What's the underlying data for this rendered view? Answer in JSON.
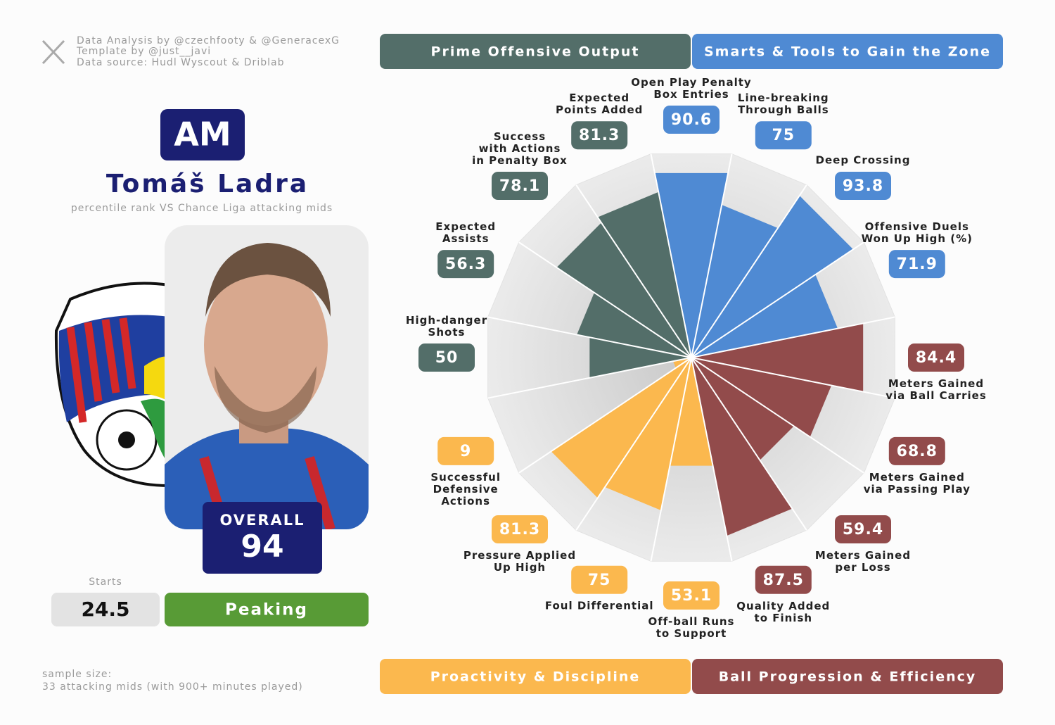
{
  "credits": [
    "Data Analysis by @czechfooty & @GeneracexG",
    "Template by @just__javi",
    "Data source: Hudl Wyscout & Driblab"
  ],
  "player": {
    "position": "AM",
    "name": "Tomáš Ladra",
    "subtitle": "percentile rank VS Chance Liga attacking mids",
    "overall_label": "OVERALL",
    "overall": 94,
    "starts_label": "Starts",
    "starts": 24.5,
    "form": "Peaking"
  },
  "sample": [
    "sample size:",
    "33 attacking mids (with 900+ minutes played)"
  ],
  "chart_data": {
    "type": "pizza",
    "rlim": [
      0,
      100
    ],
    "series": [
      {
        "name": "Prime Offensive Output",
        "color": "#536e69",
        "categories": [
          "High-danger\nShots",
          "Expected\nAssists",
          "Success\nwith Actions\nin Penalty Box",
          "Expected\nPoints Added"
        ],
        "values": [
          50,
          56.3,
          78.1,
          81.3
        ]
      },
      {
        "name": "Smarts & Tools to Gain the Zone",
        "color": "#4f8ad3",
        "categories": [
          "Open Play Penalty\nBox Entries",
          "Line-breaking\nThrough Balls",
          "Deep Crossing",
          "Offensive Duels\nWon Up High (%)"
        ],
        "values": [
          90.6,
          75,
          93.8,
          71.9
        ]
      },
      {
        "name": "Proactivity & Discipline",
        "color": "#fbb84e",
        "categories": [
          "Off-ball Runs\nto Support",
          "Foul Differential",
          "Pressure Applied\nUp High",
          "Successful\nDefensive\nActions"
        ],
        "values": [
          53.1,
          75,
          81.3,
          9
        ]
      },
      {
        "name": "Ball Progression & Efficiency",
        "color": "#924b4b",
        "categories": [
          "Meters Gained\nvia Ball Carries",
          "Meters Gained\nvia Passing Play",
          "Meters Gained\nper Loss",
          "Quality Added\nto Finish"
        ],
        "values": [
          84.4,
          68.8,
          59.4,
          87.5
        ]
      }
    ]
  }
}
